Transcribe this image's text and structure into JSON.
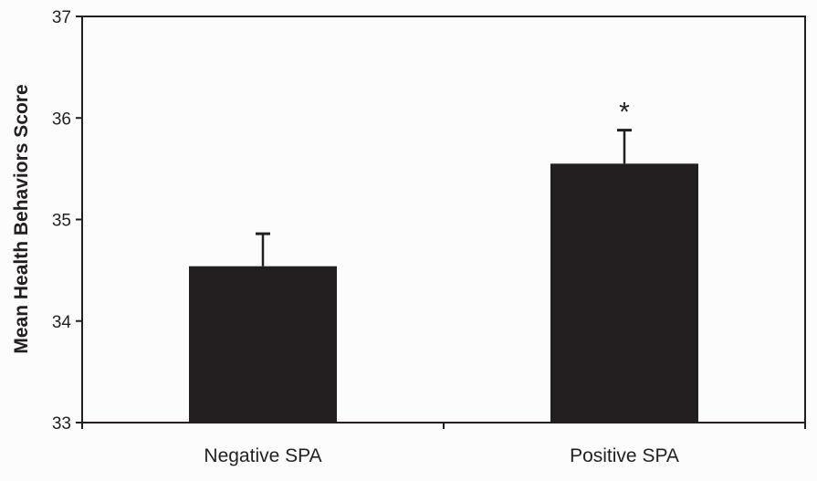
{
  "chart_data": {
    "type": "bar",
    "title": "",
    "xlabel": "",
    "ylabel": "Mean Health Behaviors Score",
    "ylim": [
      33,
      37
    ],
    "yticks": [
      33,
      34,
      35,
      36,
      37
    ],
    "categories": [
      "Negative SPA",
      "Positive SPA"
    ],
    "values": [
      34.54,
      35.55
    ],
    "error_upper": [
      34.86,
      35.88
    ],
    "annotations": [
      "",
      "*"
    ],
    "bar_color": "#231f20",
    "grid": false
  }
}
